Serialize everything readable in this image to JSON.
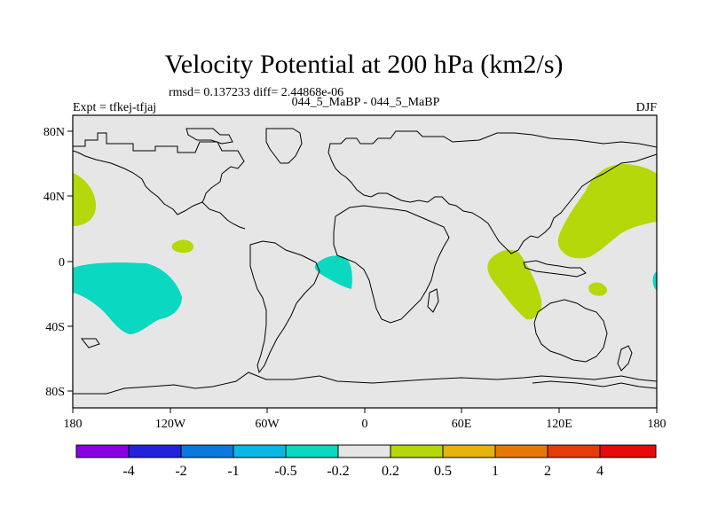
{
  "title": "Velocity Potential at 200 hPa (km2/s)",
  "stats": "rmsd= 0.137233  diff= 2.44868e-06",
  "expt": "Expt = tfkej-tfjaj",
  "comparison": "044_5_MaBP - 044_5_MaBP",
  "season": "DJF",
  "axes": {
    "x_ticks": [
      "180",
      "120W",
      "60W",
      "0",
      "60E",
      "120E",
      "180"
    ],
    "y_ticks": [
      "80N",
      "40N",
      "0",
      "40S",
      "80S"
    ]
  },
  "colorbar": {
    "colors": [
      "#8a00e6",
      "#2222dd",
      "#0a78dd",
      "#0ab8e6",
      "#0ad8c0",
      "#e6e6e6",
      "#b4d80a",
      "#e6b40a",
      "#e6780a",
      "#e63c0a",
      "#e60a0a"
    ],
    "labels": [
      "-4",
      "-2",
      "-1",
      "-0.5",
      "-0.2",
      "0.2",
      "0.5",
      "1",
      "2",
      "4"
    ]
  },
  "colors": {
    "background_field": "#e6e6e6",
    "positive_fill": "#b4d80a",
    "negative_fill": "#0ad8c0",
    "coastline": "#000000"
  }
}
